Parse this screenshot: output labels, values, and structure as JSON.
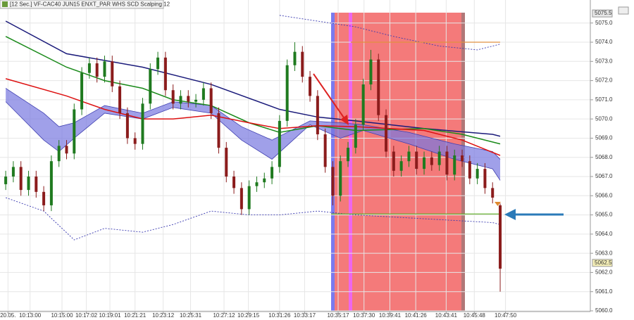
{
  "chart_data": {
    "type": "candlestick",
    "title": "[12 Sec.] VF-CAC40 JUN15   ENXT_PAR WHS SCD Scalping 12",
    "open": [
      5066.6,
      5067,
      5067.5,
      5066.3,
      5067,
      5066.2,
      5065.5,
      5067.8,
      5068.6,
      5068.2,
      5070.5,
      5072.4,
      5072.9,
      5072.2,
      5073,
      5071.7,
      5070.3,
      5069,
      5068.7,
      5070.8,
      5072.6,
      5073.2,
      5071.5,
      5070.8,
      5071.2,
      5070.9,
      5071,
      5071.6,
      5070.3,
      5068.5,
      5067,
      5066.4,
      5065.3,
      5066.5,
      5066.7,
      5066.9,
      5067.5,
      5069.9,
      5072.8,
      5073.5,
      5072.2,
      5071.2,
      5069.2,
      5067.5,
      5066,
      5067.8,
      5068.5,
      5069.7,
      5071.8,
      5073.1,
      5070.2,
      5068.3,
      5067.3,
      5067.8,
      5068.3,
      5067.4,
      5068,
      5067.6,
      5068.3,
      5067.1,
      5068.1,
      5067.8,
      5066.9,
      5067.4,
      5066.4,
      5065.5
    ],
    "high": [
      5067.3,
      5067.8,
      5067.8,
      5067.3,
      5067.3,
      5066.5,
      5068.1,
      5068.9,
      5068.9,
      5070.8,
      5072.7,
      5073.2,
      5073.2,
      5073.3,
      5073.3,
      5072.0,
      5070.6,
      5069.3,
      5071.1,
      5072.9,
      5073.5,
      5073.5,
      5071.8,
      5071.5,
      5071.5,
      5071.3,
      5071.9,
      5071.9,
      5070.6,
      5068.8,
      5067.3,
      5066.7,
      5066.8,
      5067.0,
      5067.2,
      5067.8,
      5070.2,
      5073.1,
      5074.0,
      5073.8,
      5072.5,
      5071.5,
      5069.5,
      5067.8,
      5068.1,
      5068.8,
      5070.0,
      5072.1,
      5073.6,
      5073.4,
      5070.5,
      5068.6,
      5068.1,
      5068.6,
      5068.6,
      5068.3,
      5068.3,
      5068.6,
      5068.6,
      5068.4,
      5068.4,
      5068.1,
      5067.7,
      5067.7,
      5066.7,
      5065.6
    ],
    "low": [
      5066.3,
      5066.7,
      5066.0,
      5066.0,
      5065.9,
      5065.2,
      5065.2,
      5067.5,
      5067.9,
      5067.9,
      5070.2,
      5072.1,
      5071.9,
      5071.9,
      5071.4,
      5070.0,
      5068.7,
      5068.4,
      5068.4,
      5070.5,
      5072.3,
      5071.2,
      5070.5,
      5070.5,
      5070.6,
      5070.6,
      5070.7,
      5070.0,
      5068.2,
      5066.7,
      5066.1,
      5065.0,
      5065.0,
      5066.2,
      5066.4,
      5066.6,
      5067.2,
      5069.6,
      5072.5,
      5071.9,
      5070.9,
      5068.9,
      5067.2,
      5065.5,
      5065.7,
      5067.5,
      5068.2,
      5069.4,
      5071.5,
      5069.9,
      5068.0,
      5067.0,
      5067.0,
      5067.5,
      5067.1,
      5067.1,
      5067.3,
      5067.3,
      5066.8,
      5066.8,
      5067.5,
      5066.6,
      5066.6,
      5066.1,
      5065.6,
      5061.0
    ],
    "close": [
      5067,
      5067.5,
      5066.3,
      5067,
      5066.2,
      5065.5,
      5067.8,
      5068.6,
      5068.2,
      5070.5,
      5072.4,
      5072.9,
      5072.2,
      5073,
      5071.7,
      5070.3,
      5069,
      5068.7,
      5070.8,
      5072.6,
      5073.2,
      5071.5,
      5070.8,
      5071.2,
      5070.9,
      5071,
      5071.6,
      5070.3,
      5068.5,
      5067,
      5066.4,
      5065.3,
      5066.5,
      5066.7,
      5066.9,
      5067.5,
      5069.9,
      5072.8,
      5073.5,
      5072.2,
      5071.2,
      5069.2,
      5067.5,
      5066,
      5067.8,
      5068.5,
      5069.7,
      5071.8,
      5073.1,
      5070.2,
      5068.3,
      5067.3,
      5067.8,
      5068.3,
      5067.4,
      5068,
      5067.6,
      5068.3,
      5067.1,
      5068.1,
      5067.8,
      5066.9,
      5067.4,
      5066.4,
      5065.9,
      5062.2
    ],
    "up_color": "#1f7a1f",
    "down_color": "#8b1c1c",
    "series": [
      {
        "color": "#1a1a7a",
        "x": [
          0,
          8,
          18,
          27,
          36,
          41,
          46,
          55,
          64,
          65
        ],
        "values": [
          5075.1,
          5073.4,
          5072.7,
          5071.8,
          5070.5,
          5070.1,
          5069.9,
          5069.5,
          5069.2,
          5069.1
        ]
      },
      {
        "color": "#1a8a1a",
        "x": [
          0,
          8,
          13,
          18,
          22,
          27,
          32,
          36,
          41,
          46,
          55,
          60,
          65
        ],
        "values": [
          5074.3,
          5072.7,
          5072.0,
          5071.6,
          5071.0,
          5070.7,
          5069.8,
          5069.3,
          5069.65,
          5069.4,
          5069.5,
          5069.2,
          5068.7
        ]
      },
      {
        "color": "#dd1111",
        "x": [
          0,
          8,
          13,
          18,
          22,
          27,
          32,
          36,
          41,
          46,
          55,
          60,
          65
        ],
        "values": [
          5072.1,
          5071.2,
          5070.5,
          5070.0,
          5070.0,
          5070.2,
          5069.8,
          5069.5,
          5069.65,
          5069.6,
          5069.4,
          5068.9,
          5068.1
        ]
      },
      {
        "color": "#3a3ab0",
        "dashed": true,
        "x": [
          36,
          41,
          46,
          51,
          57,
          62,
          65
        ],
        "values": [
          5075.4,
          5075.1,
          5074.8,
          5074.3,
          5073.8,
          5073.6,
          5073.9
        ]
      },
      {
        "color": "#3a3ab0",
        "dashed": true,
        "x": [
          0,
          5,
          9,
          13,
          18,
          22,
          27,
          32,
          36,
          41,
          46,
          55,
          64,
          65
        ],
        "values": [
          5065.9,
          5065.2,
          5063.7,
          5064.3,
          5064.1,
          5064.5,
          5065.2,
          5065.0,
          5065.0,
          5065.2,
          5065.0,
          5064.8,
          5064.6,
          5064.5
        ]
      }
    ],
    "band": {
      "color": "#7878e0",
      "x": [
        0,
        5,
        7,
        9,
        13,
        18,
        22,
        27,
        31,
        35,
        40,
        44,
        47,
        53,
        59,
        64,
        65
      ],
      "upper": [
        5071.6,
        5070.3,
        5069.6,
        5069.8,
        5070.7,
        5070.3,
        5070.9,
        5070.7,
        5069.6,
        5068.9,
        5069.9,
        5069.8,
        5069.7,
        5069.3,
        5068.7,
        5068.3,
        5067.9
      ],
      "lower": [
        5070.9,
        5068.9,
        5068.3,
        5069.0,
        5070.3,
        5070.0,
        5070.6,
        5070.3,
        5068.9,
        5067.9,
        5069.7,
        5069.0,
        5069.4,
        5068.7,
        5067.9,
        5067.4,
        5066.8
      ]
    },
    "levels": [
      {
        "value": 5074.0,
        "color": "#e09040"
      },
      {
        "value": 5065.05,
        "color": "#66b030"
      }
    ],
    "price_labels": [
      {
        "value": 5075.5,
        "label": "5075.5",
        "color": "#e8e8e8"
      },
      {
        "value": 5062.5,
        "label": "5062.5",
        "color": "#f6f0b8"
      }
    ],
    "xlim": [
      -0.75,
      76.85
    ],
    "ylim": [
      5060,
      5076.2
    ],
    "xticks": [
      {
        "value": 0.3,
        "label": "20.05."
      },
      {
        "value": 3.2,
        "label": "10:13:00"
      },
      {
        "value": 7.4,
        "label": "10:15:00"
      },
      {
        "value": 10.6,
        "label": "10:17:02"
      },
      {
        "value": 13.7,
        "label": "10:19:01"
      },
      {
        "value": 17,
        "label": "10:21:21"
      },
      {
        "value": 20.7,
        "label": "10:23:12"
      },
      {
        "value": 24.3,
        "label": "10:25:31"
      },
      {
        "value": 28.7,
        "label": "10:27:12"
      },
      {
        "value": 31.9,
        "label": "10:29:15"
      },
      {
        "value": 36,
        "label": "10:31:26"
      },
      {
        "value": 39.3,
        "label": "10:33:17"
      },
      {
        "value": 43.7,
        "label": "10:35:17"
      },
      {
        "value": 47.1,
        "label": "10:37:30"
      },
      {
        "value": 50.5,
        "label": "10:39:41"
      },
      {
        "value": 53.9,
        "label": "10:41:26"
      },
      {
        "value": 57.9,
        "label": "10:43:41"
      },
      {
        "value": 61.6,
        "label": "10:45:48"
      },
      {
        "value": 65.7,
        "label": "10:47:50"
      }
    ],
    "yticks": [
      {
        "value": 5060,
        "label": "5060.0"
      },
      {
        "value": 5061,
        "label": "5061.0"
      },
      {
        "value": 5062,
        "label": "5062.0"
      },
      {
        "value": 5063,
        "label": "5063.0"
      },
      {
        "value": 5064,
        "label": "5064.0"
      },
      {
        "value": 5065,
        "label": "5065.0"
      },
      {
        "value": 5066,
        "label": "5066.0"
      },
      {
        "value": 5067,
        "label": "5067.0"
      },
      {
        "value": 5068,
        "label": "5068.0"
      },
      {
        "value": 5069,
        "label": "5069.0"
      },
      {
        "value": 5070,
        "label": "5070.0"
      },
      {
        "value": 5071,
        "label": "5071.0"
      },
      {
        "value": 5072,
        "label": "5072.0"
      },
      {
        "value": 5073,
        "label": "5073.0"
      },
      {
        "value": 5074,
        "label": "5074.0"
      },
      {
        "value": 5075,
        "label": "5075.0"
      }
    ],
    "grid": true
  }
}
